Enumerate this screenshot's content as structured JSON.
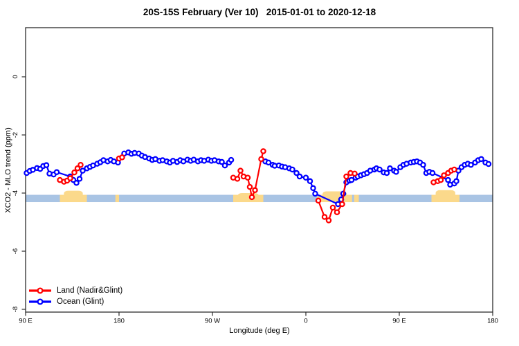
{
  "chart_data": {
    "type": "line",
    "title": "20S-15S February (Ver 10)   2015-01-01 to 2020-12-18",
    "xlabel": "Longitude (deg E)",
    "ylabel": "XCO2 - MLO trend (ppm)",
    "x_axis_note": "Longitude axis wraps eastward: left edge 90E through 180, 90W, 0, 90E to 180; x values below are unwrapped degrees 90-540 along that axis",
    "xlim": [
      90,
      540
    ],
    "ylim": [
      -8.1,
      1.7
    ],
    "grid": false,
    "legend_position": "bottom-left",
    "x_ticks": [
      {
        "deg": 90,
        "label": "90 E"
      },
      {
        "deg": 180,
        "label": "180"
      },
      {
        "deg": 270,
        "label": "90 W"
      },
      {
        "deg": 360,
        "label": "0"
      },
      {
        "deg": 450,
        "label": "90 E"
      },
      {
        "deg": 540,
        "label": "180"
      }
    ],
    "y_ticks": [
      {
        "v": 0,
        "label": "0"
      },
      {
        "v": -2,
        "label": "-2"
      },
      {
        "v": -4,
        "label": "-4"
      },
      {
        "v": -6,
        "label": "-6"
      },
      {
        "v": -8,
        "label": "-8"
      }
    ],
    "band": {
      "color": "#a9c4e4",
      "y_top": -4.06,
      "y_bottom": -4.31,
      "x_from": 90,
      "x_to": 540
    },
    "land_patches": [
      {
        "from": 123,
        "to": 149,
        "bump_top": -3.92
      },
      {
        "from": 176.5,
        "to": 180,
        "bump_top": null
      },
      {
        "from": 290,
        "to": 319,
        "bump_top": -4.0
      },
      {
        "from": 371,
        "to": 404.5,
        "bump_top": -3.94
      },
      {
        "from": 406.5,
        "to": 411,
        "bump_top": null
      },
      {
        "from": 481,
        "to": 508,
        "bump_top": -3.9
      }
    ],
    "patch_color": "#fbd98b",
    "series": [
      {
        "name": "Ocean (Glint)",
        "color": "#0000ff",
        "segments": [
          [
            [
              91,
              -3.31
            ],
            [
              94,
              -3.24
            ],
            [
              97,
              -3.2
            ],
            [
              101,
              -3.14
            ],
            [
              104,
              -3.17
            ],
            [
              107,
              -3.07
            ],
            [
              110,
              -3.04
            ],
            [
              113,
              -3.33
            ],
            [
              117,
              -3.36
            ],
            [
              120,
              -3.28
            ],
            [
              133,
              -3.43
            ],
            [
              136,
              -3.55
            ],
            [
              139,
              -3.65
            ],
            [
              142,
              -3.51
            ],
            [
              145,
              -3.23
            ],
            [
              149,
              -3.15
            ],
            [
              152,
              -3.1
            ],
            [
              155,
              -3.05
            ],
            [
              159,
              -2.99
            ],
            [
              162,
              -2.94
            ],
            [
              165,
              -2.87
            ],
            [
              169,
              -2.91
            ],
            [
              172,
              -2.86
            ],
            [
              175,
              -2.91
            ],
            [
              179,
              -2.95
            ],
            [
              185,
              -2.64
            ],
            [
              189,
              -2.6
            ],
            [
              192,
              -2.65
            ],
            [
              195,
              -2.62
            ],
            [
              199,
              -2.64
            ],
            [
              202,
              -2.71
            ],
            [
              205,
              -2.76
            ],
            [
              209,
              -2.81
            ],
            [
              212,
              -2.86
            ],
            [
              215,
              -2.83
            ],
            [
              219,
              -2.89
            ],
            [
              222,
              -2.87
            ],
            [
              226,
              -2.91
            ],
            [
              229,
              -2.95
            ],
            [
              232,
              -2.89
            ],
            [
              236,
              -2.93
            ],
            [
              239,
              -2.87
            ],
            [
              242,
              -2.91
            ],
            [
              246,
              -2.85
            ],
            [
              249,
              -2.89
            ],
            [
              252,
              -2.85
            ],
            [
              256,
              -2.91
            ],
            [
              259,
              -2.87
            ],
            [
              262,
              -2.89
            ],
            [
              266,
              -2.85
            ],
            [
              269,
              -2.89
            ],
            [
              272,
              -2.87
            ],
            [
              276,
              -2.91
            ],
            [
              279,
              -2.93
            ],
            [
              282,
              -3.05
            ],
            [
              286,
              -2.95
            ],
            [
              288,
              -2.86
            ]
          ],
          [
            [
              321,
              -2.91
            ],
            [
              324,
              -2.95
            ],
            [
              328,
              -3.03
            ],
            [
              330,
              -3.06
            ],
            [
              334,
              -3.05
            ],
            [
              337,
              -3.09
            ],
            [
              340,
              -3.11
            ],
            [
              344,
              -3.15
            ],
            [
              347,
              -3.19
            ],
            [
              351,
              -3.31
            ],
            [
              354,
              -3.43
            ],
            [
              360,
              -3.47
            ],
            [
              364,
              -3.59
            ],
            [
              367,
              -3.83
            ],
            [
              369,
              -4.02
            ],
            [
              391,
              -4.38
            ],
            [
              394,
              -4.22
            ],
            [
              396,
              -4.02
            ],
            [
              399,
              -3.63
            ],
            [
              402,
              -3.57
            ],
            [
              404,
              -3.55
            ],
            [
              408,
              -3.47
            ],
            [
              410,
              -3.43
            ],
            [
              413,
              -3.39
            ],
            [
              416,
              -3.35
            ],
            [
              419,
              -3.31
            ],
            [
              422,
              -3.23
            ],
            [
              426,
              -3.19
            ],
            [
              428,
              -3.15
            ],
            [
              431,
              -3.19
            ],
            [
              435,
              -3.29
            ],
            [
              438,
              -3.31
            ],
            [
              441,
              -3.15
            ],
            [
              445,
              -3.23
            ],
            [
              447,
              -3.27
            ],
            [
              451,
              -3.11
            ],
            [
              454,
              -3.03
            ],
            [
              457,
              -2.99
            ],
            [
              461,
              -2.95
            ],
            [
              464,
              -2.93
            ],
            [
              467,
              -2.91
            ],
            [
              470,
              -2.95
            ],
            [
              473,
              -3.03
            ],
            [
              476,
              -3.31
            ],
            [
              479,
              -3.27
            ],
            [
              482,
              -3.31
            ],
            [
              497,
              -3.55
            ],
            [
              499,
              -3.71
            ],
            [
              503,
              -3.67
            ],
            [
              505,
              -3.59
            ],
            [
              507,
              -3.23
            ],
            [
              510,
              -3.11
            ],
            [
              513,
              -3.03
            ],
            [
              516,
              -2.99
            ],
            [
              519,
              -3.03
            ],
            [
              523,
              -2.95
            ],
            [
              526,
              -2.87
            ],
            [
              529,
              -2.83
            ],
            [
              533,
              -2.95
            ],
            [
              536,
              -3.0
            ]
          ]
        ]
      },
      {
        "name": "Land (Nadir&Glint)",
        "color": "#ff0000",
        "segments": [
          [
            [
              123,
              -3.55
            ],
            [
              127,
              -3.61
            ],
            [
              130,
              -3.57
            ],
            [
              133,
              -3.49
            ],
            [
              137,
              -3.29
            ],
            [
              140,
              -3.15
            ],
            [
              143,
              -3.03
            ]
          ],
          [
            [
              180,
              -2.81
            ],
            [
              183,
              -2.77
            ]
          ],
          [
            [
              290,
              -3.47
            ],
            [
              294,
              -3.51
            ],
            [
              297,
              -3.23
            ],
            [
              300,
              -3.43
            ],
            [
              304,
              -3.47
            ],
            [
              306,
              -3.79
            ],
            [
              308,
              -4.14
            ],
            [
              311,
              -3.9
            ],
            [
              317,
              -2.83
            ],
            [
              319,
              -2.56
            ]
          ],
          [
            [
              372,
              -4.26
            ],
            [
              378,
              -4.82
            ],
            [
              382,
              -4.94
            ],
            [
              386,
              -4.5
            ],
            [
              390,
              -4.66
            ],
            [
              395,
              -4.38
            ],
            [
              399,
              -3.43
            ],
            [
              403,
              -3.31
            ],
            [
              407,
              -3.33
            ]
          ],
          [
            [
              483,
              -3.63
            ],
            [
              487,
              -3.59
            ],
            [
              490,
              -3.55
            ],
            [
              493,
              -3.39
            ],
            [
              497,
              -3.31
            ],
            [
              500,
              -3.23
            ],
            [
              503,
              -3.19
            ]
          ]
        ]
      }
    ]
  }
}
